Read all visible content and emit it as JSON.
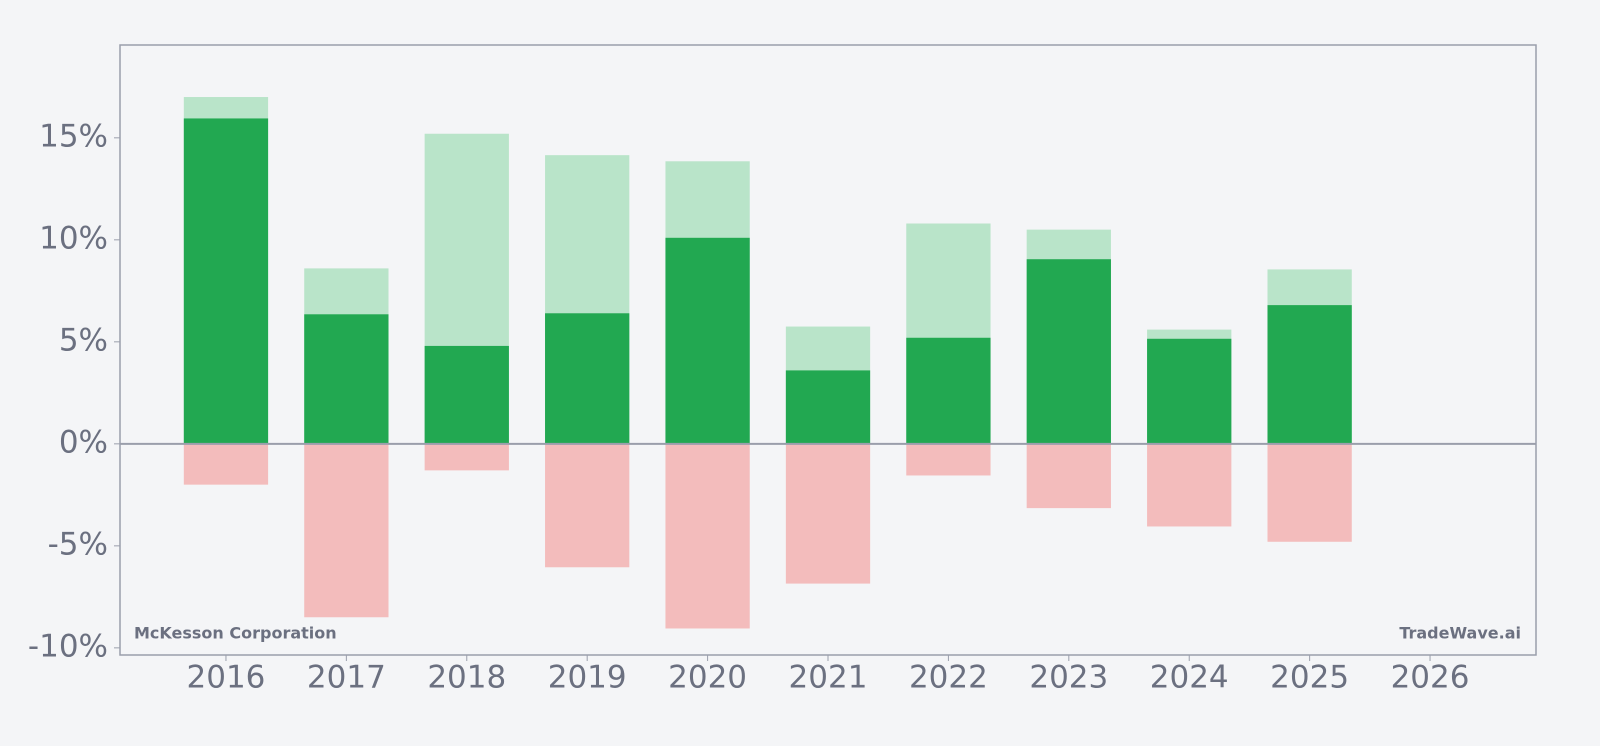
{
  "chart_data": {
    "type": "bar",
    "x": [
      2016,
      2017,
      2018,
      2019,
      2020,
      2021,
      2022,
      2023,
      2024,
      2025
    ],
    "series": [
      {
        "color": "#b9e4c9",
        "values": [
          17.0,
          8.6,
          15.2,
          14.15,
          13.85,
          5.75,
          10.8,
          10.5,
          5.6,
          8.55
        ]
      },
      {
        "color": "#22a851",
        "values": [
          15.95,
          6.35,
          4.8,
          6.4,
          10.1,
          3.6,
          5.2,
          9.05,
          5.15,
          6.8
        ]
      },
      {
        "color": "#f3bcbc",
        "values": [
          -2.0,
          -8.5,
          -1.3,
          -6.05,
          -9.05,
          -6.85,
          -1.55,
          -3.15,
          -4.05,
          -4.8
        ]
      }
    ],
    "xlim": [
      2015.12,
      2026.88
    ],
    "xticks": [
      2016,
      2017,
      2018,
      2019,
      2020,
      2021,
      2022,
      2023,
      2024,
      2025,
      2026
    ],
    "ylim": [
      -10.35,
      19.55
    ],
    "yticks": [
      {
        "value": -10,
        "label": "-10%"
      },
      {
        "value": -5,
        "label": "-5%"
      },
      {
        "value": 0,
        "label": "0%"
      },
      {
        "value": 5,
        "label": "5%"
      },
      {
        "value": 10,
        "label": "10%"
      },
      {
        "value": 15,
        "label": "15%"
      }
    ],
    "annotations": [
      "McKesson Corporation",
      "TradeWave.ai"
    ]
  }
}
